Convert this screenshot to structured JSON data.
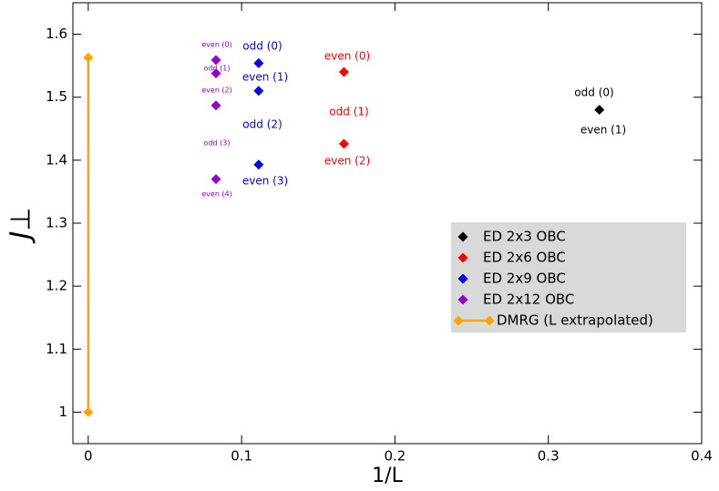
{
  "chart_data": {
    "type": "scatter",
    "xlabel": "1/L",
    "ylabel": "J⊥",
    "xlim": [
      -0.01,
      0.4
    ],
    "xticks": [
      0,
      0.1,
      0.2,
      0.3,
      0.4
    ],
    "ylim": [
      0.95,
      1.65
    ],
    "yticks": [
      1,
      1.1,
      1.2,
      1.3,
      1.4,
      1.5,
      1.6
    ],
    "legend": "lower right",
    "series": [
      {
        "name": "ED 2x3 OBC",
        "color": "#000000",
        "x": [
          0.3333
        ],
        "values": [
          1.48
        ]
      },
      {
        "name": "ED 2x6 OBC",
        "color": "#ff0000",
        "x": [
          0.1667,
          0.1667
        ],
        "values": [
          1.54,
          1.426
        ]
      },
      {
        "name": "ED 2x9 OBC",
        "color": "#0000ff",
        "x": [
          0.1111,
          0.1111,
          0.1111
        ],
        "values": [
          1.554,
          1.51,
          1.393
        ]
      },
      {
        "name": "ED 2x12 OBC",
        "color": "#9400d3",
        "x": [
          0.0833,
          0.0833,
          0.0833,
          0.0833
        ],
        "values": [
          1.559,
          1.538,
          1.487,
          1.37
        ]
      },
      {
        "name": "DMRG (L extrapolated)",
        "color": "#ffa500",
        "line": true,
        "x": [
          0,
          0
        ],
        "values": [
          1.563,
          1.0
        ]
      }
    ],
    "annotations": [
      {
        "text": "odd (0)",
        "color": "#000000"
      },
      {
        "text": "even (1)",
        "color": "#000000"
      },
      {
        "text": "even (0)",
        "color": "#ff0000"
      },
      {
        "text": "odd (1)",
        "color": "#ff0000"
      },
      {
        "text": "even (2)",
        "color": "#ff0000"
      },
      {
        "text": "odd (0)",
        "color": "#0000ff"
      },
      {
        "text": "even (1)",
        "color": "#0000ff"
      },
      {
        "text": "odd (2)",
        "color": "#0000ff"
      },
      {
        "text": "even (3)",
        "color": "#0000ff"
      },
      {
        "text": "even (0)",
        "color": "#9400d3"
      },
      {
        "text": "odd (1)",
        "color": "#9400d3"
      },
      {
        "text": "even (2)",
        "color": "#9400d3"
      },
      {
        "text": "odd (3)",
        "color": "#9400d3"
      },
      {
        "text": "even (4)",
        "color": "#9400d3"
      }
    ]
  }
}
